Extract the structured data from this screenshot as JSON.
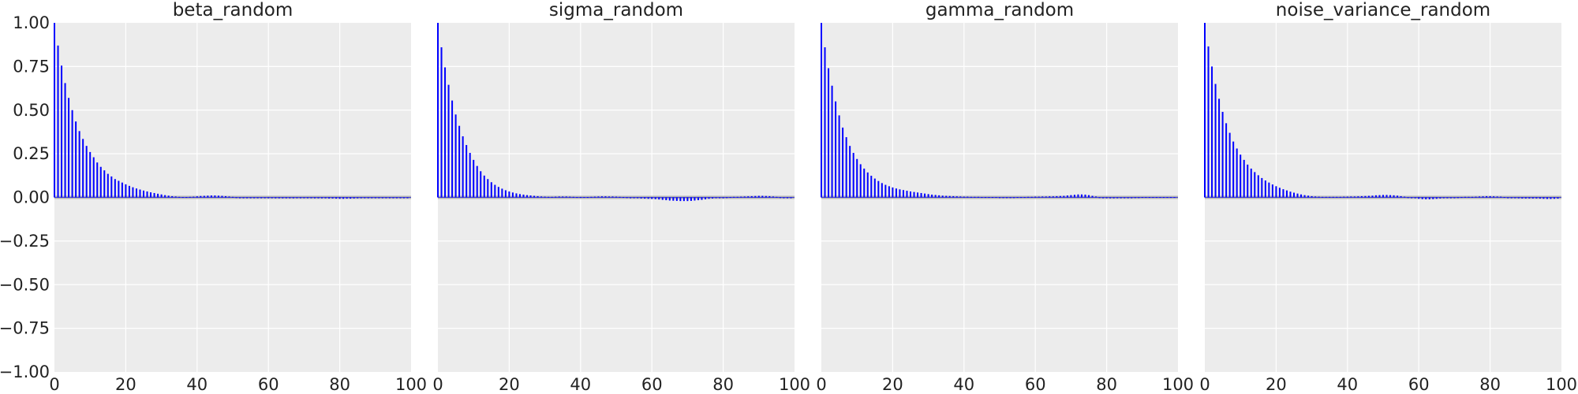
{
  "chart_data": [
    {
      "type": "bar",
      "title": "beta_random",
      "xlabel": "",
      "ylabel": "",
      "xlim": [
        0,
        100
      ],
      "ylim": [
        -1,
        1
      ],
      "grid": true,
      "bar_color": "#0000ff",
      "band_color": "#b5b5b5",
      "panel_bg": "#ececec",
      "x_tick_labels": [
        "0",
        "20",
        "40",
        "60",
        "80",
        "100"
      ],
      "y_tick_labels": [
        "1.00",
        "0.75",
        "0.50",
        "0.25",
        "0.00",
        "−0.25",
        "−0.50",
        "−0.75",
        "−1.00"
      ],
      "lags": [
        0,
        1,
        2,
        3,
        4,
        5,
        6,
        7,
        8,
        9,
        10,
        11,
        12,
        13,
        14,
        15,
        16,
        17,
        18,
        19,
        20,
        21,
        22,
        23,
        24,
        25,
        26,
        27,
        28,
        29,
        30,
        31,
        32,
        33,
        34,
        35,
        36,
        37,
        38,
        39,
        40,
        41,
        42,
        43,
        44,
        45,
        46,
        47,
        48,
        49,
        50,
        51,
        52,
        53,
        54,
        55,
        56,
        57,
        58,
        59,
        60,
        61,
        62,
        63,
        64,
        65,
        66,
        67,
        68,
        69,
        70,
        71,
        72,
        73,
        74,
        75,
        76,
        77,
        78,
        79,
        80,
        81,
        82,
        83,
        84,
        85,
        86,
        87,
        88,
        89,
        90,
        91,
        92,
        93,
        94,
        95,
        96,
        97,
        98,
        99
      ],
      "autocorr": [
        1.0,
        0.87,
        0.755,
        0.655,
        0.57,
        0.5,
        0.435,
        0.38,
        0.335,
        0.295,
        0.26,
        0.23,
        0.2,
        0.175,
        0.155,
        0.135,
        0.12,
        0.105,
        0.095,
        0.085,
        0.075,
        0.066,
        0.058,
        0.051,
        0.045,
        0.039,
        0.034,
        0.029,
        0.025,
        0.021,
        0.017,
        0.013,
        0.01,
        0.007,
        0.005,
        0.003,
        0.002,
        0.002,
        0.003,
        0.004,
        0.006,
        0.008,
        0.009,
        0.01,
        0.011,
        0.011,
        0.01,
        0.009,
        0.007,
        0.005,
        0.003,
        0.001,
        -0.001,
        -0.002,
        -0.003,
        -0.004,
        -0.004,
        -0.004,
        -0.004,
        -0.004,
        -0.004,
        -0.004,
        -0.005,
        -0.005,
        -0.005,
        -0.005,
        -0.005,
        -0.005,
        -0.004,
        -0.004,
        -0.004,
        -0.004,
        -0.004,
        -0.005,
        -0.005,
        -0.005,
        -0.005,
        -0.006,
        -0.006,
        -0.007,
        -0.008,
        -0.008,
        -0.007,
        -0.007,
        -0.006,
        -0.005,
        -0.004,
        -0.003,
        -0.002,
        -0.002,
        -0.002,
        -0.002,
        -0.002,
        -0.002,
        -0.003,
        -0.003,
        -0.003,
        -0.003,
        -0.003,
        -0.003
      ]
    },
    {
      "type": "bar",
      "title": "sigma_random",
      "xlabel": "",
      "ylabel": "",
      "xlim": [
        0,
        100
      ],
      "ylim": [
        -1,
        1
      ],
      "grid": true,
      "bar_color": "#0000ff",
      "band_color": "#b5b5b5",
      "panel_bg": "#ececec",
      "x_tick_labels": [
        "0",
        "20",
        "40",
        "60",
        "80",
        "100"
      ],
      "lags": [
        0,
        1,
        2,
        3,
        4,
        5,
        6,
        7,
        8,
        9,
        10,
        11,
        12,
        13,
        14,
        15,
        16,
        17,
        18,
        19,
        20,
        21,
        22,
        23,
        24,
        25,
        26,
        27,
        28,
        29,
        30,
        31,
        32,
        33,
        34,
        35,
        36,
        37,
        38,
        39,
        40,
        41,
        42,
        43,
        44,
        45,
        46,
        47,
        48,
        49,
        50,
        51,
        52,
        53,
        54,
        55,
        56,
        57,
        58,
        59,
        60,
        61,
        62,
        63,
        64,
        65,
        66,
        67,
        68,
        69,
        70,
        71,
        72,
        73,
        74,
        75,
        76,
        77,
        78,
        79,
        80,
        81,
        82,
        83,
        84,
        85,
        86,
        87,
        88,
        89,
        90,
        91,
        92,
        93,
        94,
        95,
        96,
        97,
        98,
        99
      ],
      "autocorr": [
        1.0,
        0.86,
        0.745,
        0.645,
        0.555,
        0.475,
        0.41,
        0.35,
        0.3,
        0.255,
        0.215,
        0.18,
        0.15,
        0.125,
        0.105,
        0.087,
        0.072,
        0.06,
        0.05,
        0.041,
        0.034,
        0.028,
        0.023,
        0.019,
        0.016,
        0.013,
        0.011,
        0.009,
        0.007,
        0.005,
        0.004,
        0.003,
        0.003,
        0.004,
        0.005,
        0.005,
        0.005,
        0.004,
        0.003,
        0.002,
        0.002,
        0.002,
        0.002,
        0.003,
        0.004,
        0.005,
        0.006,
        0.006,
        0.005,
        0.005,
        0.004,
        0.003,
        0.002,
        0.001,
        0.0,
        -0.002,
        -0.004,
        -0.006,
        -0.007,
        -0.008,
        -0.009,
        -0.01,
        -0.012,
        -0.014,
        -0.016,
        -0.018,
        -0.019,
        -0.02,
        -0.021,
        -0.021,
        -0.021,
        -0.02,
        -0.018,
        -0.016,
        -0.014,
        -0.011,
        -0.008,
        -0.006,
        -0.004,
        -0.002,
        0.0,
        0.001,
        0.002,
        0.003,
        0.003,
        0.004,
        0.005,
        0.006,
        0.007,
        0.008,
        0.009,
        0.009,
        0.008,
        0.007,
        0.005,
        0.003,
        0.001,
        -0.001,
        -0.002,
        -0.003
      ]
    },
    {
      "type": "bar",
      "title": "gamma_random",
      "xlabel": "",
      "ylabel": "",
      "xlim": [
        0,
        100
      ],
      "ylim": [
        -1,
        1
      ],
      "grid": true,
      "bar_color": "#0000ff",
      "band_color": "#b5b5b5",
      "panel_bg": "#ececec",
      "x_tick_labels": [
        "0",
        "20",
        "40",
        "60",
        "80",
        "100"
      ],
      "lags": [
        0,
        1,
        2,
        3,
        4,
        5,
        6,
        7,
        8,
        9,
        10,
        11,
        12,
        13,
        14,
        15,
        16,
        17,
        18,
        19,
        20,
        21,
        22,
        23,
        24,
        25,
        26,
        27,
        28,
        29,
        30,
        31,
        32,
        33,
        34,
        35,
        36,
        37,
        38,
        39,
        40,
        41,
        42,
        43,
        44,
        45,
        46,
        47,
        48,
        49,
        50,
        51,
        52,
        53,
        54,
        55,
        56,
        57,
        58,
        59,
        60,
        61,
        62,
        63,
        64,
        65,
        66,
        67,
        68,
        69,
        70,
        71,
        72,
        73,
        74,
        75,
        76,
        77,
        78,
        79,
        80,
        81,
        82,
        83,
        84,
        85,
        86,
        87,
        88,
        89,
        90,
        91,
        92,
        93,
        94,
        95,
        96,
        97,
        98,
        99
      ],
      "autocorr": [
        1.0,
        0.86,
        0.74,
        0.64,
        0.55,
        0.47,
        0.4,
        0.345,
        0.295,
        0.255,
        0.22,
        0.19,
        0.165,
        0.143,
        0.124,
        0.108,
        0.094,
        0.082,
        0.072,
        0.064,
        0.057,
        0.051,
        0.046,
        0.042,
        0.038,
        0.034,
        0.031,
        0.028,
        0.025,
        0.022,
        0.019,
        0.016,
        0.014,
        0.012,
        0.01,
        0.009,
        0.008,
        0.007,
        0.006,
        0.005,
        0.004,
        0.004,
        0.003,
        0.003,
        0.003,
        0.002,
        0.002,
        0.002,
        0.002,
        0.002,
        0.001,
        0.001,
        0.001,
        0.001,
        0.001,
        0.002,
        0.002,
        0.002,
        0.003,
        0.003,
        0.004,
        0.004,
        0.005,
        0.005,
        0.006,
        0.006,
        0.007,
        0.008,
        0.009,
        0.011,
        0.013,
        0.015,
        0.017,
        0.017,
        0.016,
        0.013,
        0.009,
        0.005,
        0.001,
        -0.002,
        -0.004,
        -0.005,
        -0.005,
        -0.004,
        -0.003,
        -0.002,
        -0.001,
        0.0,
        0.001,
        0.001,
        0.002,
        0.002,
        0.002,
        0.002,
        0.002,
        0.002,
        0.002,
        0.002,
        0.002,
        0.002
      ]
    },
    {
      "type": "bar",
      "title": "noise_variance_random",
      "xlabel": "",
      "ylabel": "",
      "xlim": [
        0,
        100
      ],
      "ylim": [
        -1,
        1
      ],
      "grid": true,
      "bar_color": "#0000ff",
      "band_color": "#b5b5b5",
      "panel_bg": "#ececec",
      "x_tick_labels": [
        "0",
        "20",
        "40",
        "60",
        "80",
        "100"
      ],
      "lags": [
        0,
        1,
        2,
        3,
        4,
        5,
        6,
        7,
        8,
        9,
        10,
        11,
        12,
        13,
        14,
        15,
        16,
        17,
        18,
        19,
        20,
        21,
        22,
        23,
        24,
        25,
        26,
        27,
        28,
        29,
        30,
        31,
        32,
        33,
        34,
        35,
        36,
        37,
        38,
        39,
        40,
        41,
        42,
        43,
        44,
        45,
        46,
        47,
        48,
        49,
        50,
        51,
        52,
        53,
        54,
        55,
        56,
        57,
        58,
        59,
        60,
        61,
        62,
        63,
        64,
        65,
        66,
        67,
        68,
        69,
        70,
        71,
        72,
        73,
        74,
        75,
        76,
        77,
        78,
        79,
        80,
        81,
        82,
        83,
        84,
        85,
        86,
        87,
        88,
        89,
        90,
        91,
        92,
        93,
        94,
        95,
        96,
        97,
        98,
        99
      ],
      "autocorr": [
        1.0,
        0.865,
        0.75,
        0.65,
        0.565,
        0.49,
        0.425,
        0.37,
        0.32,
        0.28,
        0.245,
        0.215,
        0.188,
        0.165,
        0.145,
        0.127,
        0.111,
        0.097,
        0.085,
        0.074,
        0.064,
        0.055,
        0.047,
        0.04,
        0.033,
        0.027,
        0.022,
        0.017,
        0.013,
        0.01,
        0.007,
        0.005,
        0.004,
        0.003,
        0.003,
        0.003,
        0.003,
        0.003,
        0.003,
        0.004,
        0.004,
        0.005,
        0.005,
        0.006,
        0.007,
        0.008,
        0.009,
        0.01,
        0.012,
        0.013,
        0.014,
        0.014,
        0.013,
        0.012,
        0.01,
        0.007,
        0.004,
        0.001,
        -0.002,
        -0.005,
        -0.008,
        -0.01,
        -0.011,
        -0.011,
        -0.01,
        -0.008,
        -0.006,
        -0.004,
        -0.002,
        -0.001,
        0.0,
        0.001,
        0.002,
        0.003,
        0.003,
        0.003,
        0.004,
        0.005,
        0.006,
        0.007,
        0.007,
        0.006,
        0.005,
        0.004,
        0.002,
        0.0,
        -0.002,
        -0.004,
        -0.005,
        -0.006,
        -0.006,
        -0.006,
        -0.006,
        -0.006,
        -0.007,
        -0.008,
        -0.009,
        -0.009,
        -0.008,
        -0.007
      ]
    }
  ]
}
